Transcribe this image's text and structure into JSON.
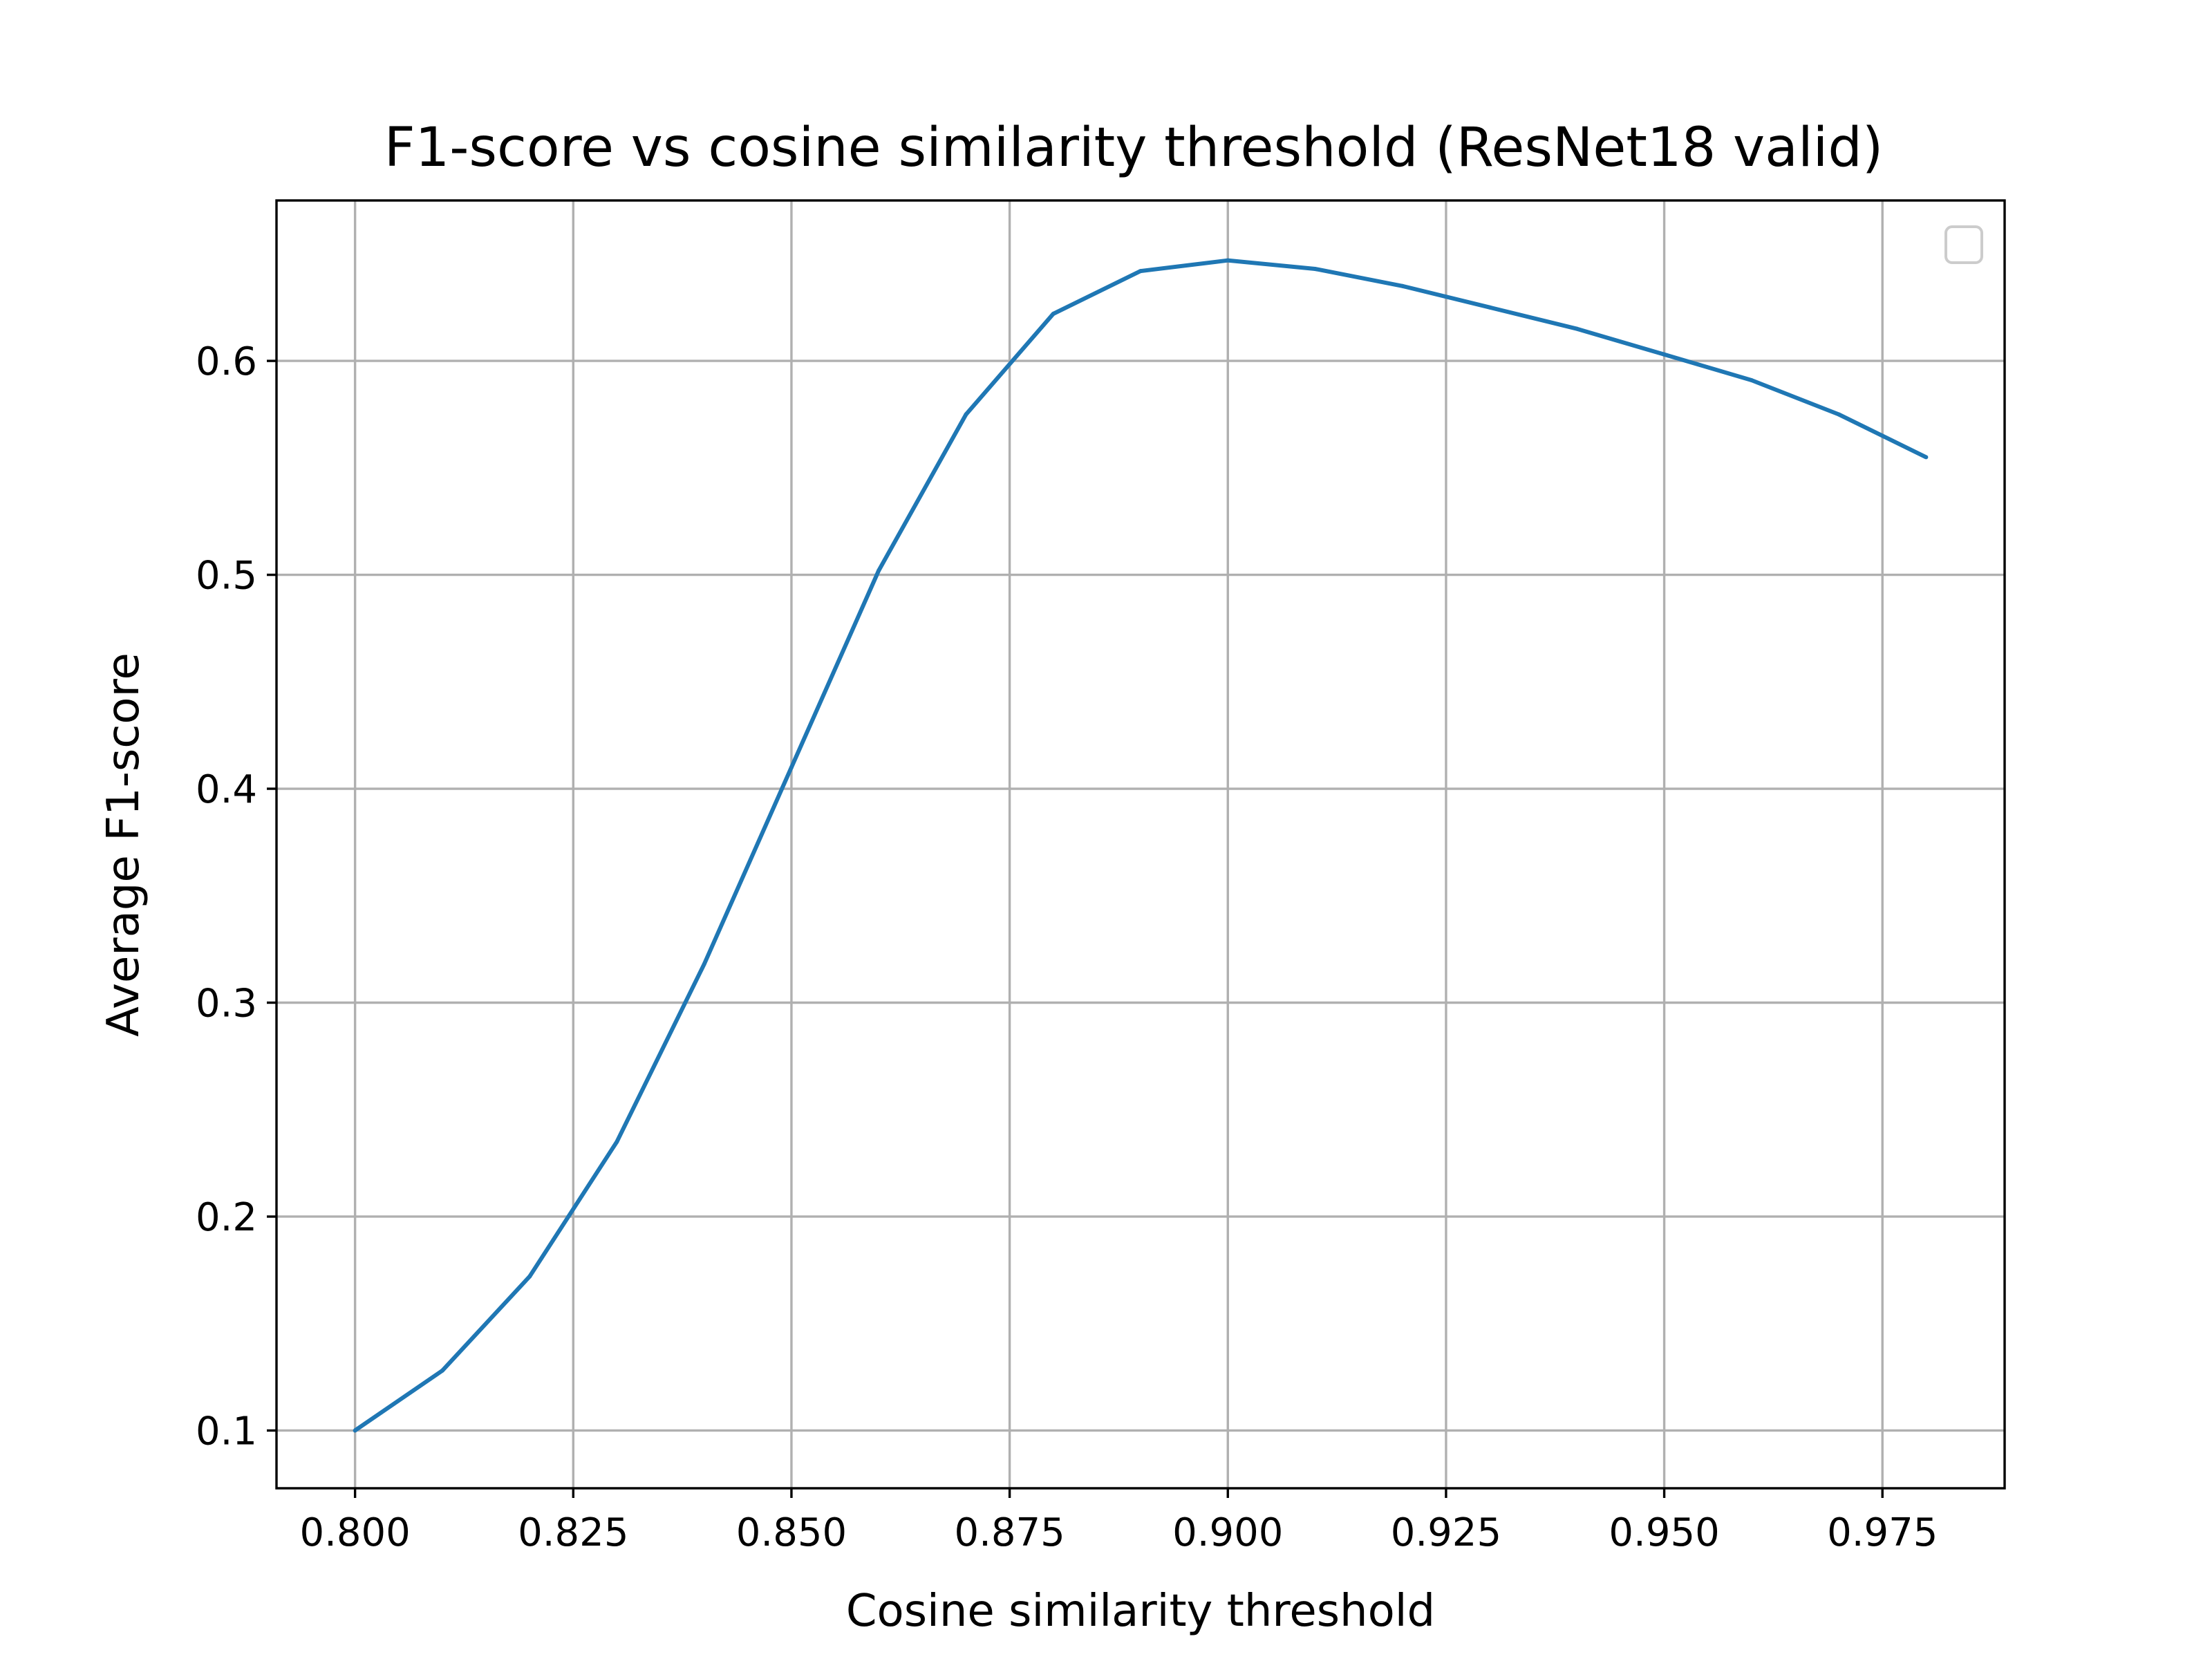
{
  "chart_data": {
    "type": "line",
    "title": "F1-score vs cosine similarity threshold (ResNet18 valid)",
    "xlabel": "Cosine similarity threshold",
    "ylabel": "Average F1-score",
    "xlim": [
      0.791,
      0.989
    ],
    "ylim": [
      0.073,
      0.675
    ],
    "grid": true,
    "legend": {
      "position": "upper right",
      "entries": []
    },
    "x_ticks": [
      "0.800",
      "0.825",
      "0.850",
      "0.875",
      "0.900",
      "0.925",
      "0.950",
      "0.975"
    ],
    "y_ticks": [
      "0.1",
      "0.2",
      "0.3",
      "0.4",
      "0.5",
      "0.6"
    ],
    "series": [
      {
        "color": "#1f77b4",
        "x": [
          0.8,
          0.81,
          0.82,
          0.83,
          0.84,
          0.85,
          0.86,
          0.87,
          0.88,
          0.89,
          0.9,
          0.91,
          0.92,
          0.93,
          0.94,
          0.95,
          0.96,
          0.97,
          0.98
        ],
        "y": [
          0.1,
          0.128,
          0.172,
          0.235,
          0.318,
          0.41,
          0.502,
          0.575,
          0.622,
          0.642,
          0.647,
          0.643,
          0.635,
          0.625,
          0.615,
          0.603,
          0.591,
          0.575,
          0.555
        ]
      }
    ]
  }
}
